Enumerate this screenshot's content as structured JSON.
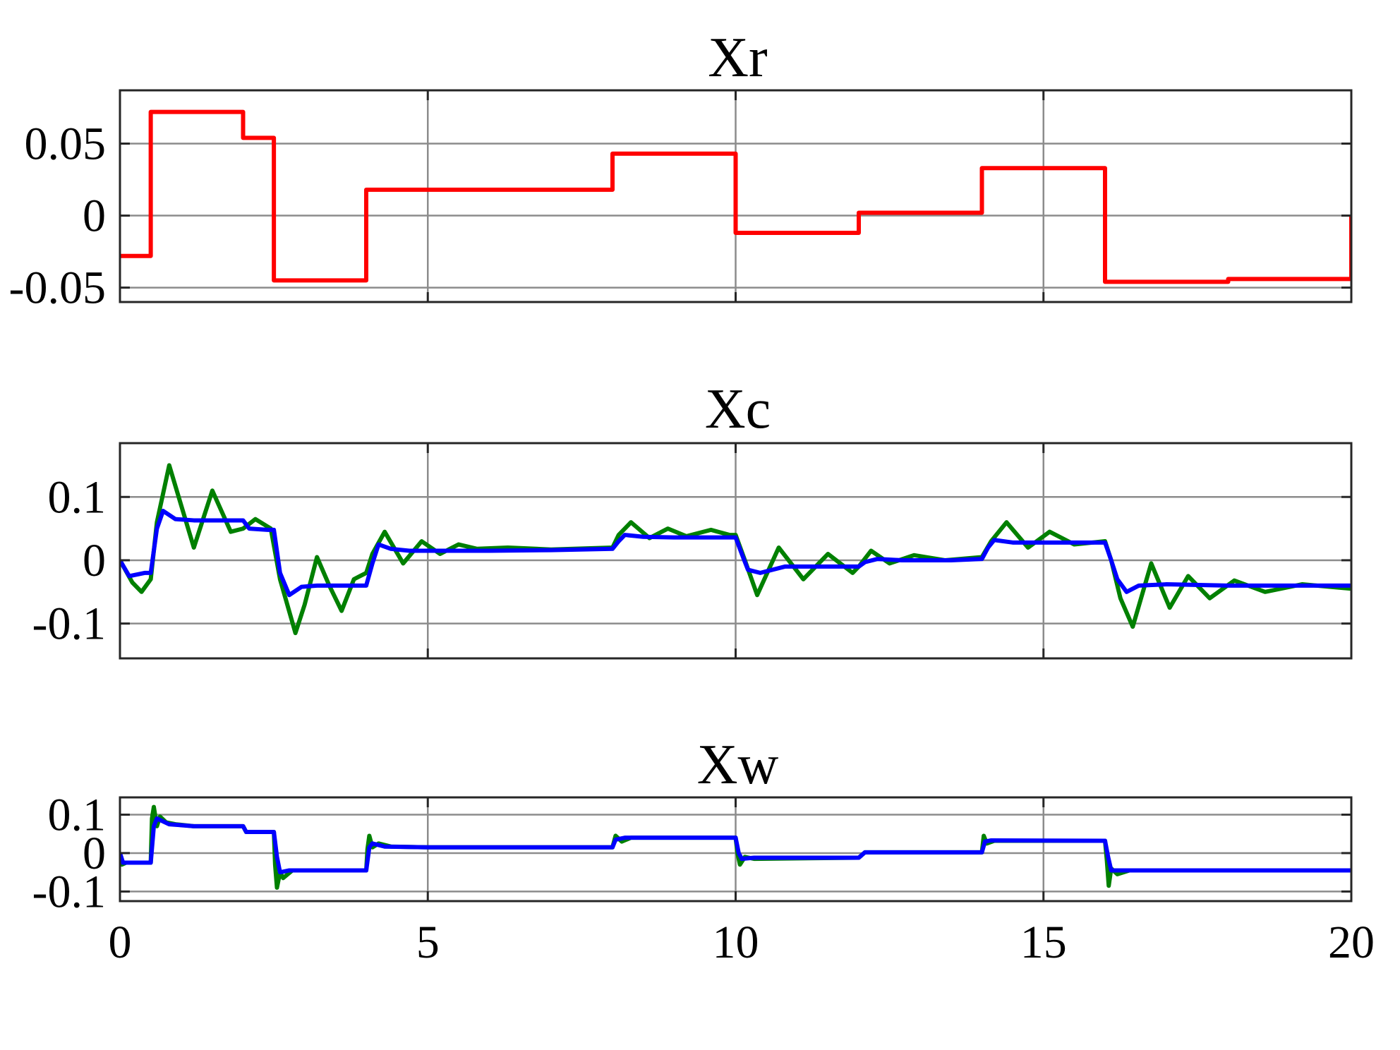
{
  "chart_data": [
    {
      "type": "line",
      "title": "Xr",
      "xlim": [
        0,
        20
      ],
      "ylim": [
        -0.06,
        0.087
      ],
      "yticks": [
        -0.05,
        0,
        0.05
      ],
      "ytick_labels": [
        "-0.05",
        "0",
        "0.05"
      ],
      "xticks": [
        0,
        5,
        10,
        15,
        20
      ],
      "xtick_labels": [],
      "grid": true,
      "series": [
        {
          "color": "#ff0000",
          "step": true,
          "x": [
            0,
            0.5,
            2.0,
            2.5,
            4.0,
            8.0,
            10.0,
            12.0,
            14.0,
            16.0,
            18.0,
            20.0
          ],
          "y": [
            -0.028,
            0.072,
            0.054,
            -0.045,
            0.018,
            0.043,
            -0.012,
            0.002,
            0.033,
            -0.046,
            -0.044,
            0.0
          ]
        }
      ]
    },
    {
      "type": "line",
      "title": "Xc",
      "xlim": [
        0,
        20
      ],
      "ylim": [
        -0.155,
        0.185
      ],
      "yticks": [
        -0.1,
        0,
        0.1
      ],
      "ytick_labels": [
        "-0.1",
        "0",
        "0.1"
      ],
      "xticks": [
        0,
        5,
        10,
        15,
        20
      ],
      "xtick_labels": [],
      "grid": true,
      "series": [
        {
          "color": "#008000",
          "x": [
            0,
            0.2,
            0.35,
            0.5,
            0.6,
            0.8,
            1.0,
            1.2,
            1.5,
            1.8,
            2.0,
            2.2,
            2.45,
            2.6,
            2.85,
            3.0,
            3.2,
            3.4,
            3.6,
            3.8,
            4.0,
            4.1,
            4.3,
            4.6,
            4.9,
            5.2,
            5.5,
            5.8,
            6.3,
            7.0,
            8.0,
            8.1,
            8.3,
            8.6,
            8.9,
            9.2,
            9.6,
            9.9,
            10.0,
            10.15,
            10.35,
            10.7,
            11.1,
            11.5,
            11.9,
            12.0,
            12.2,
            12.5,
            12.9,
            13.4,
            14.0,
            14.15,
            14.4,
            14.75,
            15.1,
            15.5,
            16.0,
            16.1,
            16.25,
            16.45,
            16.75,
            17.05,
            17.35,
            17.7,
            18.1,
            18.6,
            19.2,
            20.0
          ],
          "y": [
            0,
            -0.035,
            -0.05,
            -0.03,
            0.06,
            0.15,
            0.085,
            0.02,
            0.11,
            0.045,
            0.05,
            0.065,
            0.05,
            -0.03,
            -0.115,
            -0.07,
            0.005,
            -0.04,
            -0.08,
            -0.03,
            -0.02,
            0.01,
            0.045,
            -0.005,
            0.03,
            0.01,
            0.025,
            0.018,
            0.02,
            0.017,
            0.02,
            0.04,
            0.06,
            0.035,
            0.05,
            0.038,
            0.048,
            0.04,
            0.04,
            0.0,
            -0.055,
            0.02,
            -0.03,
            0.01,
            -0.02,
            -0.01,
            0.015,
            -0.005,
            0.008,
            0.0,
            0.005,
            0.03,
            0.06,
            0.02,
            0.045,
            0.025,
            0.03,
            0.0,
            -0.06,
            -0.105,
            -0.005,
            -0.075,
            -0.025,
            -0.06,
            -0.032,
            -0.05,
            -0.038,
            -0.045
          ]
        },
        {
          "color": "#0000ff",
          "x": [
            0,
            0.15,
            0.4,
            0.5,
            0.6,
            0.7,
            0.9,
            1.2,
            2.0,
            2.1,
            2.4,
            2.5,
            2.6,
            2.75,
            2.95,
            3.2,
            3.5,
            4.0,
            4.1,
            4.2,
            4.4,
            4.7,
            5.2,
            6.0,
            7.0,
            8.0,
            8.1,
            8.2,
            8.5,
            9.0,
            10.0,
            10.1,
            10.2,
            10.4,
            10.8,
            11.5,
            12.0,
            12.1,
            12.3,
            12.7,
            13.5,
            14.0,
            14.1,
            14.2,
            14.5,
            15.0,
            16.0,
            16.1,
            16.2,
            16.35,
            16.55,
            17.0,
            18.0,
            20.0
          ],
          "y": [
            0,
            -0.025,
            -0.02,
            -0.02,
            0.05,
            0.078,
            0.065,
            0.063,
            0.063,
            0.05,
            0.048,
            0.048,
            -0.02,
            -0.055,
            -0.042,
            -0.04,
            -0.04,
            -0.04,
            -0.005,
            0.025,
            0.018,
            0.015,
            0.015,
            0.015,
            0.016,
            0.018,
            0.03,
            0.04,
            0.037,
            0.036,
            0.036,
            0.01,
            -0.015,
            -0.02,
            -0.01,
            -0.01,
            -0.01,
            -0.003,
            0.002,
            0.0,
            0.0,
            0.002,
            0.02,
            0.032,
            0.028,
            0.028,
            0.028,
            0.0,
            -0.03,
            -0.05,
            -0.04,
            -0.038,
            -0.04,
            -0.04
          ]
        }
      ]
    },
    {
      "type": "line",
      "title": "Xw",
      "xlim": [
        0,
        20
      ],
      "ylim": [
        -0.125,
        0.145
      ],
      "yticks": [
        -0.1,
        0,
        0.1
      ],
      "ytick_labels": [
        "-0.1",
        "0",
        "0.1"
      ],
      "xticks": [
        0,
        5,
        10,
        15,
        20
      ],
      "xtick_labels": [
        "0",
        "5",
        "10",
        "15",
        "20"
      ],
      "grid": true,
      "series": [
        {
          "color": "#008000",
          "x": [
            0,
            0.03,
            0.1,
            0.5,
            0.52,
            0.55,
            0.6,
            0.65,
            0.75,
            0.9,
            1.2,
            2.0,
            2.05,
            2.5,
            2.52,
            2.55,
            2.6,
            2.65,
            2.8,
            3.0,
            4.0,
            4.02,
            4.05,
            4.1,
            4.2,
            4.4,
            5.0,
            8.0,
            8.05,
            8.15,
            8.3,
            10.0,
            10.03,
            10.07,
            10.15,
            10.3,
            12.0,
            12.1,
            14.0,
            14.03,
            14.08,
            14.2,
            16.0,
            16.03,
            16.06,
            16.1,
            16.2,
            16.4,
            17.0,
            20.0
          ],
          "y": [
            0.0,
            -0.03,
            -0.025,
            -0.025,
            0.09,
            0.12,
            0.07,
            0.095,
            0.08,
            0.075,
            0.07,
            0.07,
            0.055,
            0.055,
            -0.03,
            -0.09,
            -0.05,
            -0.065,
            -0.045,
            -0.045,
            -0.045,
            0.01,
            0.045,
            0.015,
            0.025,
            0.017,
            0.015,
            0.015,
            0.045,
            0.03,
            0.04,
            0.04,
            0.0,
            -0.03,
            -0.01,
            -0.015,
            -0.012,
            0.002,
            0.002,
            0.045,
            0.025,
            0.032,
            0.032,
            -0.02,
            -0.085,
            -0.04,
            -0.055,
            -0.045,
            -0.045,
            -0.045
          ]
        },
        {
          "color": "#0000ff",
          "x": [
            0,
            0.05,
            0.5,
            0.55,
            0.6,
            0.8,
            1.2,
            2.0,
            2.05,
            2.5,
            2.55,
            2.6,
            2.75,
            3.0,
            4.0,
            4.05,
            4.1,
            4.3,
            5.0,
            8.0,
            8.05,
            8.2,
            10.0,
            10.05,
            10.1,
            10.3,
            12.0,
            12.1,
            14.0,
            14.05,
            14.15,
            16.0,
            16.05,
            16.1,
            16.3,
            17.0,
            20.0
          ],
          "y": [
            0.0,
            -0.025,
            -0.025,
            0.07,
            0.09,
            0.075,
            0.07,
            0.07,
            0.055,
            0.055,
            -0.01,
            -0.05,
            -0.045,
            -0.045,
            -0.045,
            0.015,
            0.025,
            0.017,
            0.015,
            0.015,
            0.035,
            0.04,
            0.04,
            0.0,
            -0.015,
            -0.012,
            -0.012,
            0.002,
            0.002,
            0.03,
            0.033,
            0.032,
            -0.01,
            -0.045,
            -0.045,
            -0.045,
            -0.045
          ]
        }
      ]
    }
  ]
}
